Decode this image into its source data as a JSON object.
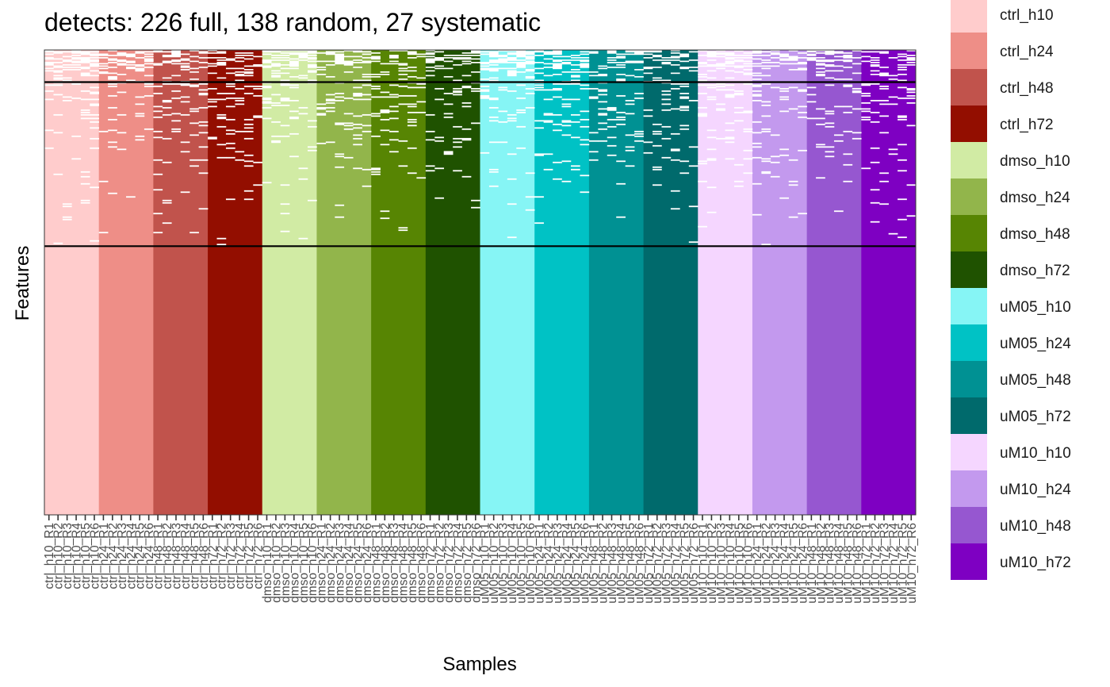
{
  "chart_data": {
    "type": "heatmap",
    "title": "detects: 226 full, 138 random, 27 systematic",
    "xlabel": "Samples",
    "ylabel": "Features",
    "detects": {
      "full": 226,
      "random": 138,
      "systematic": 27
    },
    "legend": [
      {
        "label": "ctrl_h10",
        "color": "#FFCCCC"
      },
      {
        "label": "ctrl_h24",
        "color": "#EE8E87"
      },
      {
        "label": "ctrl_h48",
        "color": "#C1534C"
      },
      {
        "label": "ctrl_h72",
        "color": "#930E00"
      },
      {
        "label": "dmso_h10",
        "color": "#D1EBA4"
      },
      {
        "label": "dmso_h24",
        "color": "#92B54B"
      },
      {
        "label": "dmso_h48",
        "color": "#578503"
      },
      {
        "label": "dmso_h72",
        "color": "#1F5200"
      },
      {
        "label": "uM05_h10",
        "color": "#86F5F5"
      },
      {
        "label": "uM05_h24",
        "color": "#00C2C5"
      },
      {
        "label": "uM05_h48",
        "color": "#009193"
      },
      {
        "label": "uM05_h72",
        "color": "#006A6C"
      },
      {
        "label": "uM10_h10",
        "color": "#F5D6FF"
      },
      {
        "label": "uM10_h24",
        "color": "#C399EE"
      },
      {
        "label": "uM10_h48",
        "color": "#9657D0"
      },
      {
        "label": "uM10_h72",
        "color": "#7E00C2"
      }
    ],
    "samples": [
      "ctrl_h10_R1",
      "ctrl_h10_R2",
      "ctrl_h10_R3",
      "ctrl_h10_R4",
      "ctrl_h10_R5",
      "ctrl_h10_R6",
      "ctrl_h24_R1",
      "ctrl_h24_R2",
      "ctrl_h24_R3",
      "ctrl_h24_R4",
      "ctrl_h24_R5",
      "ctrl_h24_R6",
      "ctrl_h48_R1",
      "ctrl_h48_R2",
      "ctrl_h48_R3",
      "ctrl_h48_R4",
      "ctrl_h48_R5",
      "ctrl_h48_R6",
      "ctrl_h72_R1",
      "ctrl_h72_R2",
      "ctrl_h72_R3",
      "ctrl_h72_R4",
      "ctrl_h72_R5",
      "ctrl_h72_R6",
      "dmso_h10_R1",
      "dmso_h10_R2",
      "dmso_h10_R3",
      "dmso_h10_R4",
      "dmso_h10_R5",
      "dmso_h10_R6",
      "dmso_h24_R1",
      "dmso_h24_R2",
      "dmso_h24_R3",
      "dmso_h24_R4",
      "dmso_h24_R5",
      "dmso_h24_R6",
      "dmso_h48_R1",
      "dmso_h48_R2",
      "dmso_h48_R3",
      "dmso_h48_R4",
      "dmso_h48_R5",
      "dmso_h48_R6",
      "dmso_h72_R1",
      "dmso_h72_R2",
      "dmso_h72_R3",
      "dmso_h72_R4",
      "dmso_h72_R5",
      "dmso_h72_R6",
      "uM05_h10_R1",
      "uM05_h10_R2",
      "uM05_h10_R3",
      "uM05_h10_R4",
      "uM05_h10_R5",
      "uM05_h10_R6",
      "uM05_h24_R1",
      "uM05_h24_R2",
      "uM05_h24_R3",
      "uM05_h24_R4",
      "uM05_h24_R5",
      "uM05_h24_R6",
      "uM05_h48_R1",
      "uM05_h48_R2",
      "uM05_h48_R3",
      "uM05_h48_R4",
      "uM05_h48_R5",
      "uM05_h48_R6",
      "uM05_h72_R1",
      "uM05_h72_R2",
      "uM05_h72_R3",
      "uM05_h72_R4",
      "uM05_h72_R5",
      "uM05_h72_R6",
      "uM10_h10_R1",
      "uM10_h10_R2",
      "uM10_h10_R3",
      "uM10_h10_R4",
      "uM10_h10_R5",
      "uM10_h10_R6",
      "uM10_h24_R1",
      "uM10_h24_R2",
      "uM10_h24_R3",
      "uM10_h24_R4",
      "uM10_h24_R5",
      "uM10_h24_R6",
      "uM10_h48_R1",
      "uM10_h48_R2",
      "uM10_h48_R3",
      "uM10_h48_R4",
      "uM10_h48_R5",
      "uM10_h48_R6",
      "uM10_h72_R1",
      "uM10_h72_R2",
      "uM10_h72_R3",
      "uM10_h72_R4",
      "uM10_h72_R5",
      "uM10_h72_R6"
    ],
    "missing_color": "#FFFFFF",
    "separator_color": "#000000"
  }
}
